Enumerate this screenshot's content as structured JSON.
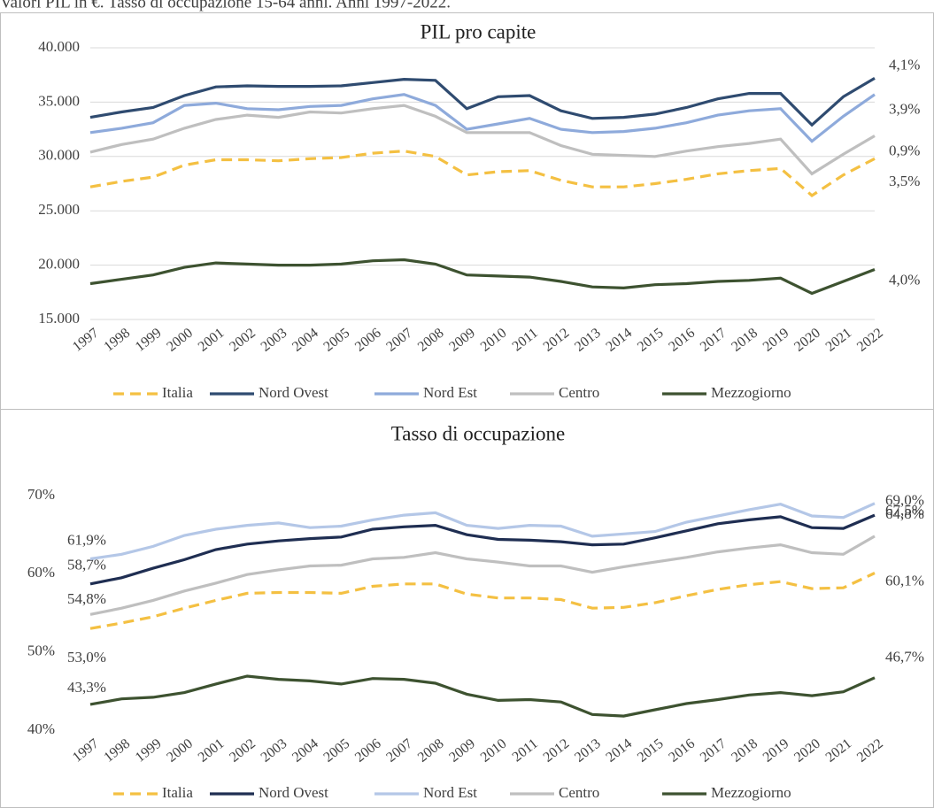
{
  "header": "Valori PIL in €. Tasso di occupazione 15-64 anni. Anni 1997-2022.",
  "chart_data": [
    {
      "type": "line",
      "title": "PIL pro capite",
      "categories": [
        "1997",
        "1998",
        "1999",
        "2000",
        "2001",
        "2002",
        "2003",
        "2004",
        "2005",
        "2006",
        "2007",
        "2008",
        "2009",
        "2010",
        "2011",
        "2012",
        "2013",
        "2014",
        "2015",
        "2016",
        "2017",
        "2018",
        "2019",
        "2020",
        "2021",
        "2022"
      ],
      "ylim": [
        15000,
        40000
      ],
      "yticks": [
        {
          "value": 15000,
          "label": "15.000"
        },
        {
          "value": 20000,
          "label": "20.000"
        },
        {
          "value": 25000,
          "label": "25.000"
        },
        {
          "value": 30000,
          "label": "30.000"
        },
        {
          "value": 35000,
          "label": "35.000"
        },
        {
          "value": 40000,
          "label": "40.000"
        }
      ],
      "grid": true,
      "legend": "bottom",
      "series": [
        {
          "name": "Italia",
          "color": "#f4c042",
          "style": "dashed",
          "end_label": "3,5%",
          "values": [
            27200,
            27700,
            28100,
            29200,
            29700,
            29700,
            29600,
            29800,
            29900,
            30300,
            30500,
            30000,
            28300,
            28600,
            28700,
            27800,
            27200,
            27200,
            27500,
            27900,
            28400,
            28700,
            28900,
            26400,
            28300,
            29800
          ]
        },
        {
          "name": "Nord Ovest",
          "color": "#2f4b70",
          "style": "solid",
          "end_label": "4,1%",
          "values": [
            33600,
            34100,
            34500,
            35600,
            36400,
            36500,
            36450,
            36450,
            36500,
            36800,
            37100,
            37000,
            34400,
            35500,
            35600,
            34200,
            33500,
            33600,
            33900,
            34500,
            35300,
            35800,
            35800,
            32900,
            35500,
            37200
          ]
        },
        {
          "name": "Nord Est",
          "color": "#8eaadb",
          "style": "solid",
          "end_label": "3,9%",
          "values": [
            32200,
            32600,
            33100,
            34700,
            34900,
            34400,
            34300,
            34600,
            34700,
            35300,
            35700,
            34700,
            32500,
            33000,
            33500,
            32500,
            32200,
            32300,
            32600,
            33100,
            33800,
            34200,
            34400,
            31400,
            33700,
            35700
          ]
        },
        {
          "name": "Centro",
          "color": "#bfbfbf",
          "style": "solid",
          "end_label": "0,9%",
          "values": [
            30400,
            31100,
            31600,
            32600,
            33400,
            33800,
            33600,
            34100,
            34000,
            34400,
            34700,
            33700,
            32200,
            32200,
            32200,
            31000,
            30200,
            30100,
            30000,
            30500,
            30900,
            31200,
            31600,
            28400,
            30200,
            31900
          ]
        },
        {
          "name": "Mezzogiorno",
          "color": "#3d5230",
          "style": "solid",
          "end_label": "4,0%",
          "values": [
            18300,
            18700,
            19100,
            19800,
            20200,
            20100,
            20000,
            20000,
            20100,
            20400,
            20500,
            20100,
            19100,
            19000,
            18900,
            18500,
            18000,
            17900,
            18200,
            18300,
            18500,
            18600,
            18800,
            17400,
            18500,
            19600
          ]
        }
      ]
    },
    {
      "type": "line",
      "title": "Tasso di occupazione",
      "categories": [
        "1997",
        "1998",
        "1999",
        "2000",
        "2001",
        "2002",
        "2003",
        "2004",
        "2005",
        "2006",
        "2007",
        "2008",
        "2009",
        "2010",
        "2011",
        "2012",
        "2013",
        "2014",
        "2015",
        "2016",
        "2017",
        "2018",
        "2019",
        "2020",
        "2021",
        "2022"
      ],
      "ylim": [
        40,
        70
      ],
      "yticks": [
        {
          "value": 40,
          "label": "40%"
        },
        {
          "value": 50,
          "label": "50%"
        },
        {
          "value": 60,
          "label": "60%"
        },
        {
          "value": 70,
          "label": "70%"
        }
      ],
      "grid": false,
      "legend": "bottom",
      "series": [
        {
          "name": "Italia",
          "color": "#f4c042",
          "style": "dashed",
          "values": [
            53.0,
            53.7,
            54.5,
            55.6,
            56.6,
            57.5,
            57.6,
            57.6,
            57.5,
            58.4,
            58.7,
            58.7,
            57.4,
            56.9,
            56.9,
            56.7,
            55.6,
            55.7,
            56.3,
            57.2,
            58.0,
            58.6,
            59.0,
            58.1,
            58.2,
            60.1
          ],
          "value_labels": [
            "53,0%",
            null,
            null,
            null,
            null,
            null,
            null,
            null,
            null,
            null,
            null,
            null,
            null,
            null,
            null,
            null,
            null,
            null,
            null,
            null,
            null,
            null,
            null,
            null,
            null,
            "60,1%"
          ]
        },
        {
          "name": "Nord Ovest",
          "color": "#1f2e52",
          "style": "solid",
          "values": [
            58.7,
            59.5,
            60.7,
            61.8,
            63.1,
            63.8,
            64.2,
            64.5,
            64.7,
            65.7,
            66.0,
            66.2,
            65.0,
            64.4,
            64.3,
            64.1,
            63.7,
            63.8,
            64.6,
            65.5,
            66.4,
            66.9,
            67.3,
            65.9,
            65.8,
            67.5
          ],
          "value_labels": [
            "58,7%",
            null,
            null,
            null,
            null,
            null,
            null,
            null,
            null,
            null,
            null,
            null,
            null,
            null,
            null,
            null,
            null,
            null,
            null,
            null,
            null,
            null,
            null,
            null,
            null,
            "67,5%"
          ]
        },
        {
          "name": "Nord Est",
          "color": "#b4c7e7",
          "style": "solid",
          "values": [
            61.9,
            62.5,
            63.5,
            64.9,
            65.7,
            66.2,
            66.5,
            65.9,
            66.1,
            66.9,
            67.5,
            67.8,
            66.2,
            65.8,
            66.2,
            66.1,
            64.8,
            65.1,
            65.4,
            66.6,
            67.4,
            68.2,
            68.9,
            67.4,
            67.2,
            69.0
          ],
          "value_labels": [
            "61,9%",
            null,
            null,
            null,
            null,
            null,
            null,
            null,
            null,
            null,
            null,
            null,
            null,
            null,
            null,
            null,
            null,
            null,
            null,
            null,
            null,
            null,
            null,
            null,
            null,
            "69,0%"
          ]
        },
        {
          "name": "Centro",
          "color": "#bfbfbf",
          "style": "solid",
          "values": [
            54.8,
            55.6,
            56.6,
            57.8,
            58.8,
            59.9,
            60.5,
            61.0,
            61.1,
            61.9,
            62.1,
            62.7,
            61.9,
            61.5,
            61.0,
            61.0,
            60.2,
            60.9,
            61.5,
            62.1,
            62.8,
            63.3,
            63.7,
            62.7,
            62.5,
            64.8
          ],
          "value_labels": [
            "54,8%",
            null,
            null,
            null,
            null,
            null,
            null,
            null,
            null,
            null,
            null,
            null,
            null,
            null,
            null,
            null,
            null,
            null,
            null,
            null,
            null,
            null,
            null,
            null,
            null,
            "64,8%"
          ]
        },
        {
          "name": "Mezzogiorno",
          "color": "#3d5230",
          "style": "solid",
          "values": [
            43.3,
            44.0,
            44.2,
            44.8,
            45.9,
            46.9,
            46.5,
            46.3,
            45.9,
            46.6,
            46.5,
            46.0,
            44.6,
            43.8,
            43.9,
            43.6,
            42.0,
            41.8,
            42.6,
            43.4,
            43.9,
            44.5,
            44.8,
            44.4,
            44.9,
            46.7
          ],
          "value_labels": [
            "43,3%",
            null,
            null,
            null,
            null,
            null,
            null,
            null,
            null,
            null,
            null,
            null,
            null,
            null,
            null,
            null,
            null,
            null,
            null,
            null,
            null,
            null,
            null,
            null,
            null,
            "46,7%"
          ]
        }
      ]
    }
  ]
}
